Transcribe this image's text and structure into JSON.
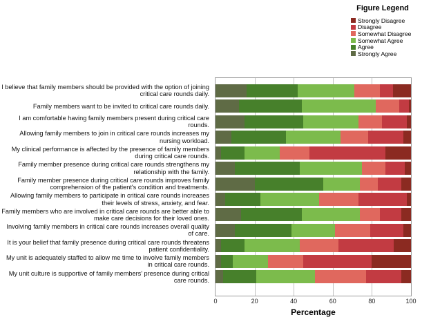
{
  "legend": {
    "title": "Figure Legend"
  },
  "chart_data": {
    "type": "bar",
    "orientation": "horizontal-stacked",
    "title": "",
    "xlabel": "Percentage",
    "ylabel": "",
    "xlim": [
      0,
      100
    ],
    "xticks": [
      0,
      20,
      40,
      60,
      80,
      100
    ],
    "grid": true,
    "legend_position": "top-right",
    "legend_title": "Figure Legend",
    "bar_segment_order_left_to_right": [
      "Strongly Agree",
      "Agree",
      "Somewhat Agree",
      "Somewhat Disagree",
      "Disagree",
      "Strongly Disagree"
    ],
    "categories": [
      "I believe that family members should be provided with the option of joining critical care rounds daily.",
      "Family members want to be invited to critical care rounds daily.",
      "I am comfortable having family members present during critical care rounds.",
      "Allowing family members to join in critical care rounds increases my nursing workload.",
      "My clinical performance is affected by the presence of family members during critical care rounds.",
      "Family member presence during critical care rounds strengthens my relationship with the family.",
      "Family member presence during critical care rounds improves family comprehension of the patient's condition and treatments.",
      "Allowing family members to participate in critical care rounds increases their levels of stress, anxiety, and fear.",
      "Family members who are involved in critical care rounds are better able to make care decisions for their loved ones.",
      "Involving family members in critical care rounds increases overall quality of care.",
      "It is your belief that family presence during critical care rounds threatens patient confidentiality.",
      "My unit is adequately staffed to allow me time to involve family members in critical care rounds.",
      "My unit culture is supportive of family members' presence during critical care rounds."
    ],
    "series": [
      {
        "name": "Strongly Disagree",
        "color": "#8B2A21",
        "values": [
          9,
          1,
          2,
          4,
          13,
          3,
          5,
          2,
          5,
          4,
          9,
          20,
          5
        ]
      },
      {
        "name": "Disagree",
        "color": "#C23B42",
        "values": [
          7,
          5,
          13,
          18,
          39,
          10,
          12,
          25,
          11,
          17,
          28,
          35,
          18
        ]
      },
      {
        "name": "Somewhat Disagree",
        "color": "#E0685E",
        "values": [
          13,
          12,
          12,
          14,
          15,
          12,
          9,
          20,
          10,
          18,
          20,
          18,
          26
        ]
      },
      {
        "name": "Somewhat Agree",
        "color": "#7CBB4C",
        "values": [
          29,
          38,
          28,
          28,
          18,
          32,
          19,
          30,
          30,
          22,
          28,
          18,
          30
        ]
      },
      {
        "name": "Agree",
        "color": "#47802B",
        "values": [
          26,
          32,
          30,
          28,
          12,
          33,
          35,
          18,
          31,
          29,
          12,
          6,
          17
        ]
      },
      {
        "name": "Strongly Agree",
        "color": "#5F6B45",
        "values": [
          16,
          12,
          15,
          8,
          3,
          10,
          20,
          5,
          13,
          10,
          3,
          3,
          4
        ]
      }
    ]
  }
}
